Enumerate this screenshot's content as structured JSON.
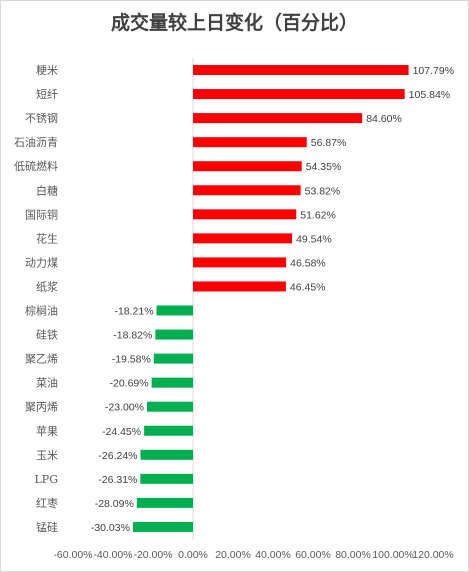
{
  "chart_data": {
    "type": "bar",
    "orientation": "horizontal",
    "title": "成交量较上日变化（百分比）",
    "categories": [
      "粳米",
      "短纤",
      "不锈钢",
      "石油沥青",
      "低硫燃料",
      "白糖",
      "国际铜",
      "花生",
      "动力煤",
      "纸浆",
      "棕榈油",
      "硅铁",
      "聚乙烯",
      "菜油",
      "聚丙烯",
      "苹果",
      "玉米",
      "LPG",
      "红枣",
      "锰硅"
    ],
    "values": [
      107.79,
      105.84,
      84.6,
      56.87,
      54.35,
      53.82,
      51.62,
      49.54,
      46.58,
      46.45,
      -18.21,
      -18.82,
      -19.58,
      -20.69,
      -23.0,
      -24.45,
      -26.24,
      -26.31,
      -28.09,
      -30.03
    ],
    "value_labels": [
      "107.79%",
      "105.84%",
      "84.60%",
      "56.87%",
      "54.35%",
      "53.82%",
      "51.62%",
      "49.54%",
      "46.58%",
      "46.45%",
      "-18.21%",
      "-18.82%",
      "-19.58%",
      "-20.69%",
      "-23.00%",
      "-24.45%",
      "-26.24%",
      "-26.31%",
      "-28.09%",
      "-30.03%"
    ],
    "xlim": [
      -60,
      120
    ],
    "xticks": [
      -60,
      -40,
      -20,
      0,
      20,
      40,
      60,
      80,
      100,
      120
    ],
    "xtick_labels": [
      "-60.00%",
      "-40.00%",
      "-20.00%",
      "0.00%",
      "20.00%",
      "40.00%",
      "60.00%",
      "80.00%",
      "100.00%",
      "120.00%"
    ],
    "xlabel": "",
    "ylabel": "",
    "grid": false,
    "legend": "none",
    "colors": {
      "positive": "#ff0000",
      "negative": "#00b050",
      "axis": "#d9d9d9"
    }
  }
}
